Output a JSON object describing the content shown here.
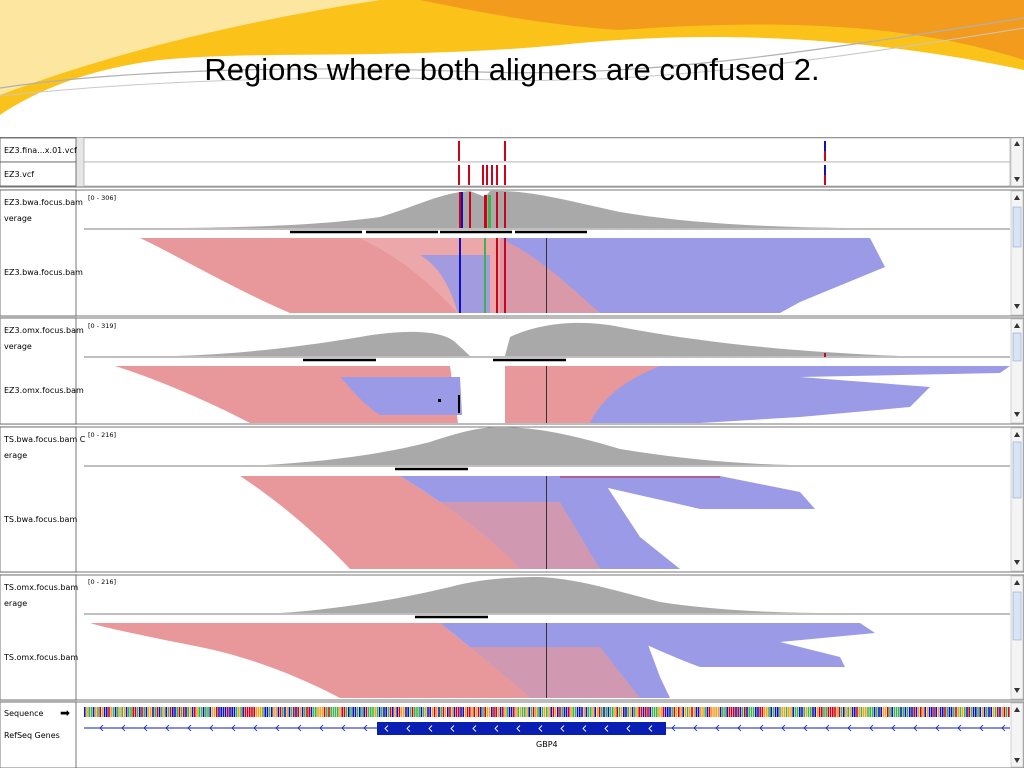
{
  "slide": {
    "title": "Regions where both aligners are confused 2."
  },
  "colors": {
    "forward_read": "#e8989a",
    "reverse_read": "#9a9ae6",
    "coverage": "#a9a9a9",
    "variant_ref": "#d0021b",
    "variant_alt": "#1010c0",
    "gene": "#0a1eb4",
    "header_orange": "#f7a21b"
  },
  "igv": {
    "panels": [
      {
        "id": "vcf",
        "tracks": [
          {
            "label": "EZ3.fina...x.01.vcf"
          },
          {
            "label": "EZ3.vcf"
          }
        ]
      },
      {
        "id": "ez3-bwa",
        "coverage_label_line1": "EZ3.bwa.focus.bam",
        "coverage_label_line2": "verage",
        "alignment_label": "EZ3.bwa.focus.bam",
        "range": "[0 - 306]"
      },
      {
        "id": "ez3-omx",
        "coverage_label_line1": "EZ3.omx.focus.bam",
        "coverage_label_line2": "verage",
        "alignment_label": "EZ3.omx.focus.bam",
        "range": "[0 - 319]"
      },
      {
        "id": "ts-bwa",
        "coverage_label_line1": "TS.bwa.focus.bam C",
        "coverage_label_line2": "erage",
        "alignment_label": "TS.bwa.focus.bam",
        "range": "[0 - 216]"
      },
      {
        "id": "ts-omx",
        "coverage_label_line1": "TS.omx.focus.bam",
        "coverage_label_line2": "erage",
        "alignment_label": "TS.omx.focus.bam",
        "range": "[0 - 216]"
      },
      {
        "id": "reference",
        "sequence_label": "Sequence",
        "genes_label": "RefSeq Genes",
        "gene_name": "GBP4",
        "strand_arrow": "➡"
      }
    ]
  }
}
